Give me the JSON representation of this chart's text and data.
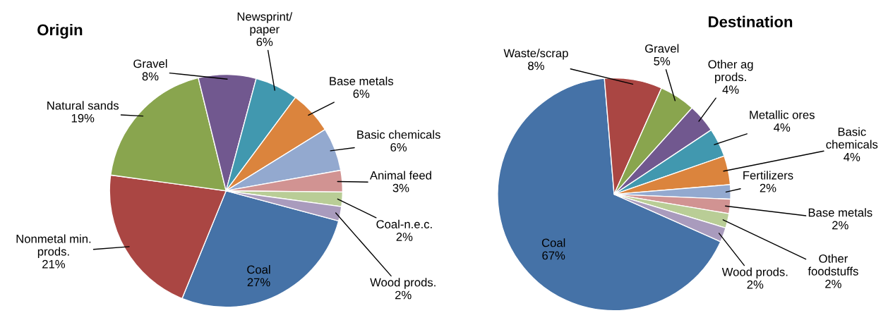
{
  "chart_data": [
    {
      "type": "pie",
      "title": "Origin",
      "legend": false,
      "categories": [
        "Coal",
        "Nonmetal min.\nprods.",
        "Natural sands",
        "Gravel",
        "Newsprint/\npaper",
        "Base metals",
        "Basic chemicals",
        "Animal feed",
        "Coal-n.e.c.",
        "Wood prods."
      ],
      "values": [
        27,
        21,
        19,
        8,
        6,
        6,
        6,
        3,
        2,
        2
      ],
      "value_labels": [
        "27%",
        "21%",
        "19%",
        "8%",
        "6%",
        "6%",
        "6%",
        "3%",
        "2%",
        "2%"
      ],
      "colors": [
        "#4572a7",
        "#aa4643",
        "#89a54e",
        "#71588f",
        "#4198af",
        "#db843d",
        "#93a9cf",
        "#d19392",
        "#b9cd96",
        "#a99bbd"
      ]
    },
    {
      "type": "pie",
      "title": "Destination",
      "legend": false,
      "categories": [
        "Coal",
        "Waste/scrap",
        "Gravel",
        "Other ag\nprods.",
        "Metallic ores",
        "Basic\nchemicals",
        "Fertilizers",
        "Base metals",
        "Other\nfoodstuffs",
        "Wood prods."
      ],
      "values": [
        67,
        8,
        5,
        4,
        4,
        4,
        2,
        2,
        2,
        2
      ],
      "value_labels": [
        "67%",
        "8%",
        "5%",
        "4%",
        "4%",
        "4%",
        "2%",
        "2%",
        "2%",
        "2%"
      ],
      "colors": [
        "#4572a7",
        "#aa4643",
        "#89a54e",
        "#71588f",
        "#4198af",
        "#db843d",
        "#93a9cf",
        "#d19392",
        "#b9cd96",
        "#a99bbd"
      ]
    }
  ]
}
